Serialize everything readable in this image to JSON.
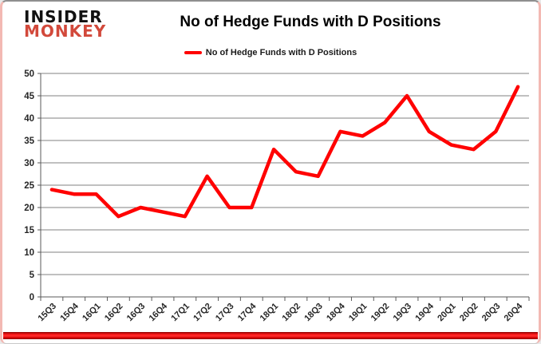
{
  "logo": {
    "line1": "INSIDER",
    "line2": "MONKEY"
  },
  "header": {
    "title": "No of Hedge Funds with D Positions"
  },
  "legend": {
    "label": "No of Hedge Funds with D Positions"
  },
  "colors": {
    "line": "#ff0000",
    "grid": "#808080",
    "axis": "#595959",
    "tick_label": "#262626",
    "logo_black": "#111111",
    "logo_red": "#d2493b",
    "bottom_bar_red": "#ff1a1a",
    "side_border_pink": "#f3b9b3"
  },
  "chart_data": {
    "type": "line",
    "title": "No of Hedge Funds with D Positions",
    "categories": [
      "15Q3",
      "15Q4",
      "16Q1",
      "16Q2",
      "16Q3",
      "16Q4",
      "17Q1",
      "17Q2",
      "17Q3",
      "17Q4",
      "18Q1",
      "18Q2",
      "18Q3",
      "18Q4",
      "19Q1",
      "19Q2",
      "19Q3",
      "19Q4",
      "20Q1",
      "20Q2",
      "20Q3",
      "20Q4"
    ],
    "series": [
      {
        "name": "No of Hedge Funds with D Positions",
        "color": "#ff0000",
        "values": [
          24,
          23,
          23,
          18,
          20,
          19,
          18,
          27,
          20,
          20,
          33,
          28,
          27,
          37,
          36,
          39,
          45,
          37,
          34,
          33,
          37,
          47
        ]
      }
    ],
    "xlabel": "",
    "ylabel": "",
    "ylim": [
      0,
      50
    ],
    "yticks": [
      0,
      5,
      10,
      15,
      20,
      25,
      30,
      35,
      40,
      45,
      50
    ],
    "grid": "horizontal",
    "legend_position": "top-center"
  }
}
